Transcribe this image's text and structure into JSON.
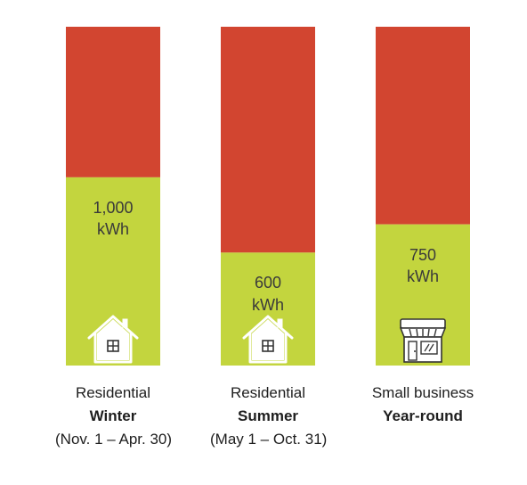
{
  "chart_data": {
    "type": "bar",
    "stacked": true,
    "ymax": 1800,
    "colors": {
      "threshold": "#c3d53e",
      "remainder": "#d24530"
    },
    "bars": [
      {
        "value": 1000,
        "value_text": "1,000",
        "unit": "kWh",
        "category": "Residential",
        "period": "Winter",
        "dates": "(Nov. 1 – Apr. 30)",
        "icon": "house-icon"
      },
      {
        "value": 600,
        "value_text": "600",
        "unit": "kWh",
        "category": "Residential",
        "period": "Summer",
        "dates": "(May 1 – Oct. 31)",
        "icon": "house-icon"
      },
      {
        "value": 750,
        "value_text": "750",
        "unit": "kWh",
        "category": "Small business",
        "period": "Year-round",
        "dates": "",
        "icon": "storefront-icon"
      }
    ]
  }
}
